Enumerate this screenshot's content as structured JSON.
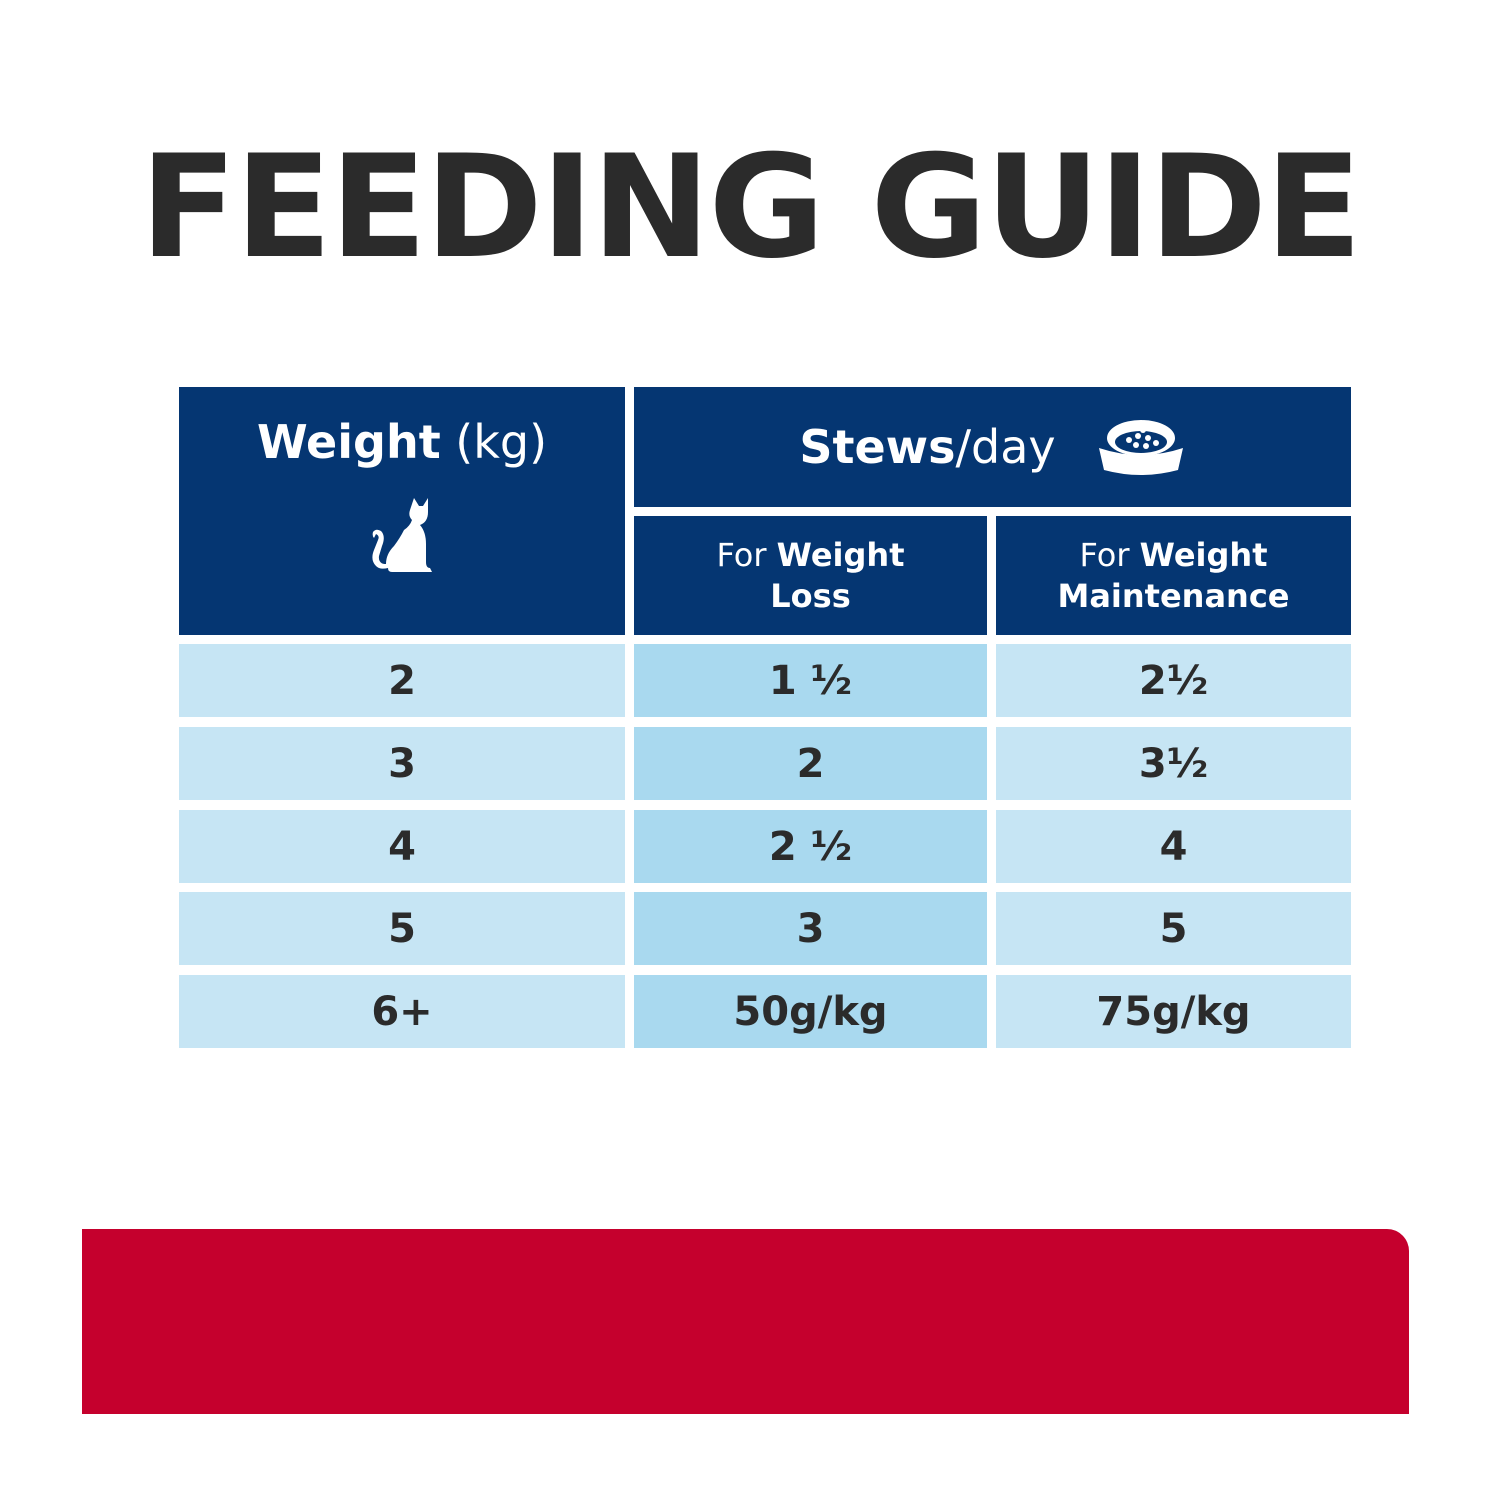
{
  "title": "FEEDING GUIDE",
  "colors": {
    "title": "#2b2b2b",
    "header_bg": "#053672",
    "cell_light": "#c6e5f4",
    "cell_mid": "#a9d9ef",
    "banner": "#c5002d"
  },
  "table": {
    "col1_header": {
      "bold": "Weight",
      "normal": " (kg)",
      "icon": "cat-icon"
    },
    "group_header": {
      "bold": "Stews",
      "normal": "/day",
      "icon": "food-bowl-icon"
    },
    "sub_headers": [
      {
        "normal": "For ",
        "bold1": "Weight",
        "bold2": "Loss"
      },
      {
        "normal": "For ",
        "bold1": "Weight",
        "bold2": "Maintenance"
      }
    ],
    "rows": [
      {
        "weight": "2",
        "loss": "1 ½",
        "maintenance": "2½"
      },
      {
        "weight": "3",
        "loss": "2",
        "maintenance": "3½"
      },
      {
        "weight": "4",
        "loss": "2 ½",
        "maintenance": "4"
      },
      {
        "weight": "5",
        "loss": "3",
        "maintenance": "5"
      },
      {
        "weight": "6+",
        "loss": "50g/kg",
        "maintenance": "75g/kg"
      }
    ]
  }
}
